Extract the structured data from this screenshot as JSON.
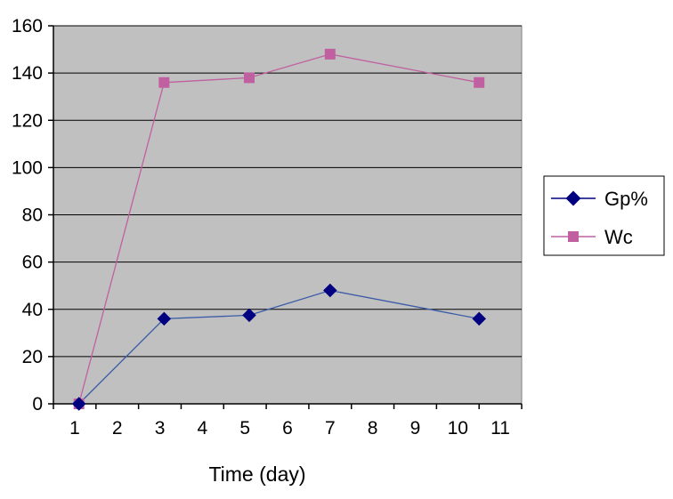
{
  "chart_data": {
    "type": "line",
    "title": "",
    "xlabel": "Time (day)",
    "ylabel": "",
    "x_ticks": [
      "1",
      "2",
      "3",
      "4",
      "5",
      "6",
      "7",
      "8",
      "9",
      "10",
      "11"
    ],
    "ylim": [
      0,
      160
    ],
    "y_ticks": [
      "0",
      "20",
      "40",
      "60",
      "80",
      "100",
      "120",
      "140",
      "160"
    ],
    "grid": "horizontal",
    "legend_position": "right",
    "background_color": "#c0c0c0",
    "series": [
      {
        "name": "Gp%",
        "color": "#000080",
        "marker": "diamond",
        "line_color": "#3b5ba8",
        "points": [
          {
            "x": 1.1,
            "y": 0
          },
          {
            "x": 3.1,
            "y": 36
          },
          {
            "x": 5.1,
            "y": 37.5
          },
          {
            "x": 7.0,
            "y": 48
          },
          {
            "x": 10.5,
            "y": 36
          }
        ]
      },
      {
        "name": "Wc",
        "color": "#c060a0",
        "marker": "square",
        "line_color": "#c060a0",
        "points": [
          {
            "x": 1.1,
            "y": 0
          },
          {
            "x": 3.1,
            "y": 136
          },
          {
            "x": 5.1,
            "y": 138
          },
          {
            "x": 7.0,
            "y": 148
          },
          {
            "x": 10.5,
            "y": 136
          }
        ]
      }
    ]
  }
}
